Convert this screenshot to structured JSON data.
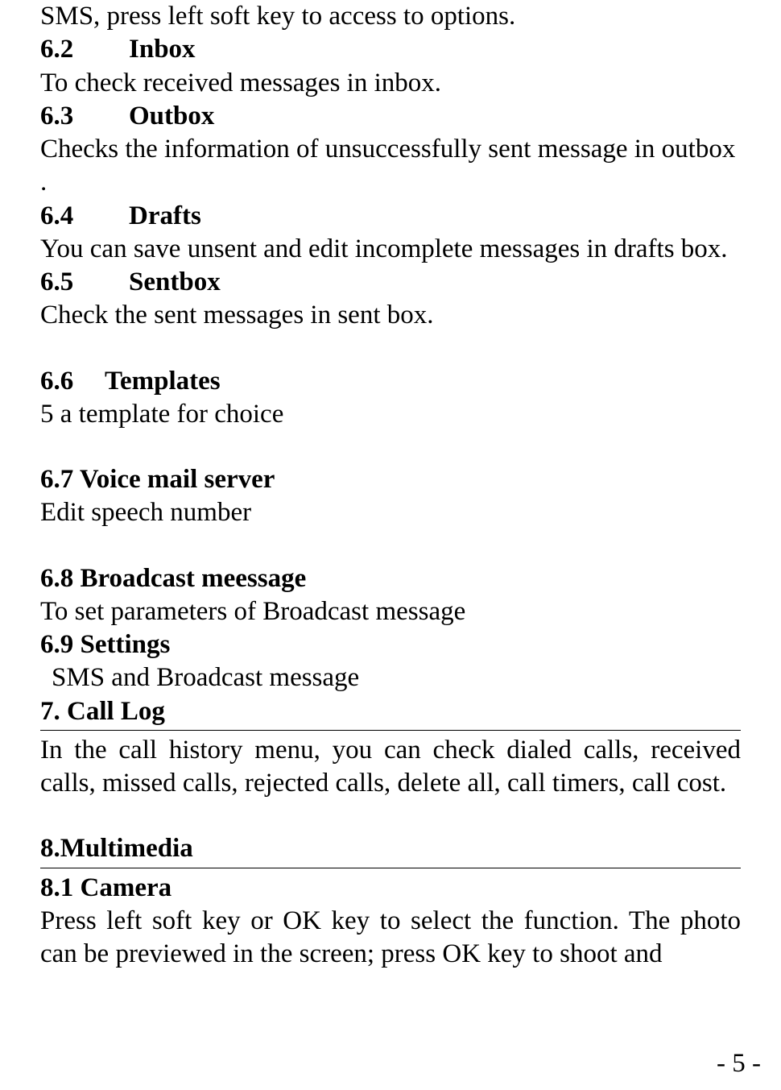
{
  "colors": {
    "text": "#000000",
    "bg": "#ffffff",
    "rule": "#000000"
  },
  "font": {
    "family": "Times New Roman",
    "size_pt": 25
  },
  "opening_line": "SMS, press left soft key to access to options.",
  "sections": {
    "s62": {
      "num": "6.2",
      "title": "Inbox",
      "body": "To check received messages in inbox."
    },
    "s63": {
      "num": "6.3",
      "title": "Outbox",
      "body": "Checks the information of unsuccessfully sent message in outbox ."
    },
    "s64": {
      "num": "6.4",
      "title": "Drafts",
      "body": "You can save unsent and edit incomplete messages in drafts box."
    },
    "s65": {
      "num": "6.5",
      "title": "Sentbox",
      "body": "Check the sent messages in sent box."
    },
    "s66": {
      "num": "6.6",
      "title": "Templates",
      "body": "5 a template for choice"
    },
    "s67": {
      "heading": "6.7 Voice mail server",
      "body": "Edit speech number"
    },
    "s68": {
      "heading": "6.8 Broadcast meessage",
      "body": "To set parameters of Broadcast message"
    },
    "s69": {
      "heading": "6.9 Settings",
      "body": "SMS and Broadcast message"
    },
    "s7": {
      "heading": "7. Call Log",
      "body": "In the call history menu, you can check dialed calls, received calls, missed calls, rejected calls, delete all, call timers, call cost."
    },
    "s8": {
      "heading": "8.Multimedia"
    },
    "s81": {
      "heading": "8.1 Camera",
      "body": "Press left soft key or OK key to select the function. The photo can be previewed in the screen; press OK key to shoot and"
    }
  },
  "page_number": "- 5 -"
}
